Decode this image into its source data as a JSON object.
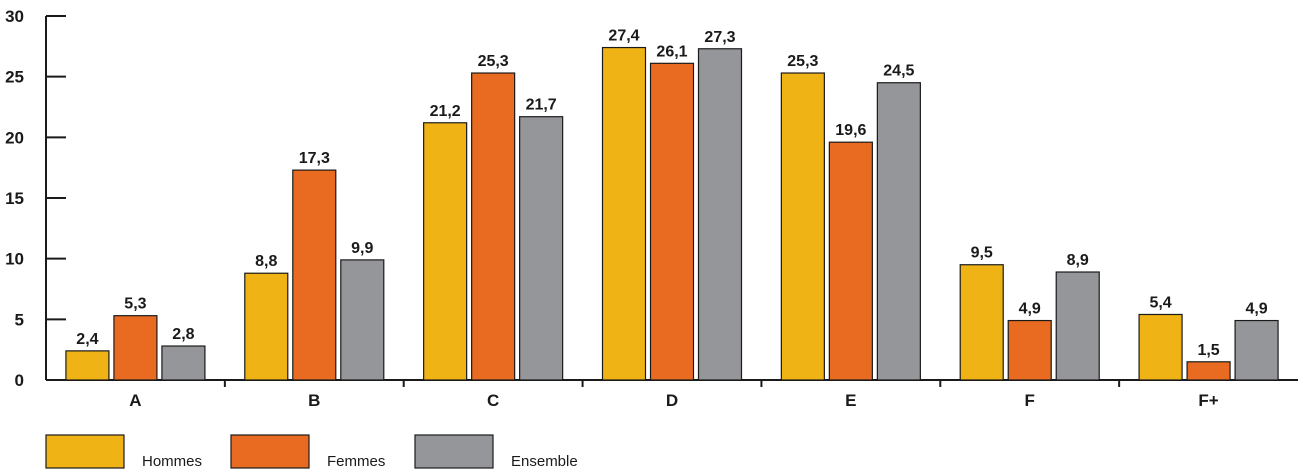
{
  "chart_data": {
    "type": "bar",
    "title": "",
    "xlabel": "",
    "ylabel": "",
    "ylim": [
      0,
      30
    ],
    "yticks": [
      "0",
      "5",
      "10",
      "15",
      "20",
      "25",
      "30"
    ],
    "categories": [
      "A",
      "B",
      "C",
      "D",
      "E",
      "F",
      "F+"
    ],
    "series": [
      {
        "name": "Hommes",
        "color": "#f0b315",
        "values": [
          2.4,
          8.8,
          21.2,
          27.4,
          25.3,
          9.5,
          5.4
        ],
        "labels": [
          "2,4",
          "8,8",
          "21,2",
          "27,4",
          "25,3",
          "9,5",
          "5,4"
        ]
      },
      {
        "name": "Femmes",
        "color": "#e96b22",
        "values": [
          5.3,
          17.3,
          25.3,
          26.1,
          19.6,
          4.9,
          1.5
        ],
        "labels": [
          "5,3",
          "17,3",
          "25,3",
          "26,1",
          "19,6",
          "4,9",
          "1,5"
        ]
      },
      {
        "name": "Ensemble",
        "color": "#959699",
        "values": [
          2.8,
          9.9,
          21.7,
          27.3,
          24.5,
          8.9,
          4.9
        ],
        "labels": [
          "2,8",
          "9,9",
          "21,7",
          "27,3",
          "24,5",
          "8,9",
          "4,9"
        ]
      }
    ],
    "grid": false,
    "legend_position": "bottom-left"
  }
}
